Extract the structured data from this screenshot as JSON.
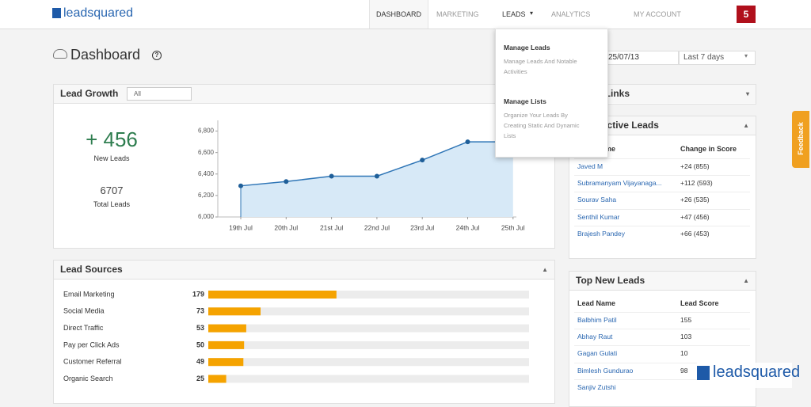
{
  "header": {
    "logo": "leadsquared",
    "nav": [
      "DASHBOARD",
      "MARKETING",
      "LEADS",
      "ANALYTICS",
      "MY ACCOUNT"
    ],
    "notifications": 5
  },
  "page": {
    "title": "Dashboard",
    "date": "25/07/13",
    "range": "Last 7 days"
  },
  "leads_menu": [
    {
      "title": "Manage Leads",
      "description": "Manage Leads And Notable Activities"
    },
    {
      "title": "Manage Lists",
      "description": "Organize Your Leads By Creating Static And Dynamic Lists"
    }
  ],
  "lead_growth": {
    "filter": "All",
    "new_leads": "+ 456",
    "new_leads_label": "New Leads",
    "total_leads": 6707,
    "total_leads_label": "Total Leads"
  },
  "chart_data": [
    {
      "type": "line",
      "title": "Lead Growth",
      "categories": [
        "19th Jul",
        "20th Jul",
        "21st Jul",
        "22nd Jul",
        "23rd Jul",
        "24th Jul",
        "25th Jul"
      ],
      "values": [
        6290,
        6330,
        6380,
        6380,
        6530,
        6700,
        6700
      ],
      "color": "#2e75b6",
      "fill": "#d7e9f7",
      "ylim": [
        6000,
        6900
      ],
      "yticks": [
        {
          "value": 6000,
          "label": "6,000"
        },
        {
          "value": 6200,
          "label": "6,200"
        },
        {
          "value": 6400,
          "label": "6,400"
        },
        {
          "value": 6600,
          "label": "6,600"
        },
        {
          "value": 6800,
          "label": "6,800"
        }
      ]
    },
    {
      "type": "hbar",
      "title": "Lead Sources",
      "categories": [
        "Email Marketing",
        "Social Media",
        "Direct Traffic",
        "Pay per Click Ads",
        "Customer Referral",
        "Organic Search"
      ],
      "values": [
        179,
        73,
        53,
        50,
        49,
        25
      ],
      "color": "#f5a300",
      "track": "#ececec",
      "xlim": [
        0,
        448
      ]
    }
  ],
  "quick_links": {
    "title": "Quick Links"
  },
  "most_active": {
    "title": "Most Active Leads",
    "columns": [
      "Lead Name",
      "Change in Score"
    ],
    "rows": [
      [
        "Javed M",
        "+24 (855)"
      ],
      [
        "Subramanyam Vijayanaga...",
        "+112 (593)"
      ],
      [
        "Sourav Saha",
        "+26 (535)"
      ],
      [
        "Senthil Kumar",
        "+47 (456)"
      ],
      [
        "Brajesh Pandey",
        "+66 (453)"
      ]
    ]
  },
  "top_new": {
    "title": "Top New Leads",
    "columns": [
      "Lead Name",
      "Lead Score"
    ],
    "rows": [
      [
        "Balbhim Patil",
        155
      ],
      [
        "Abhay Raut",
        103
      ],
      [
        "Gagan Gulati",
        10
      ],
      [
        "Bimlesh Gundurao",
        98
      ],
      [
        "Sanjiv Zutshi"
      ]
    ]
  },
  "feedback": "Feedback",
  "watermark": "leadsquared"
}
